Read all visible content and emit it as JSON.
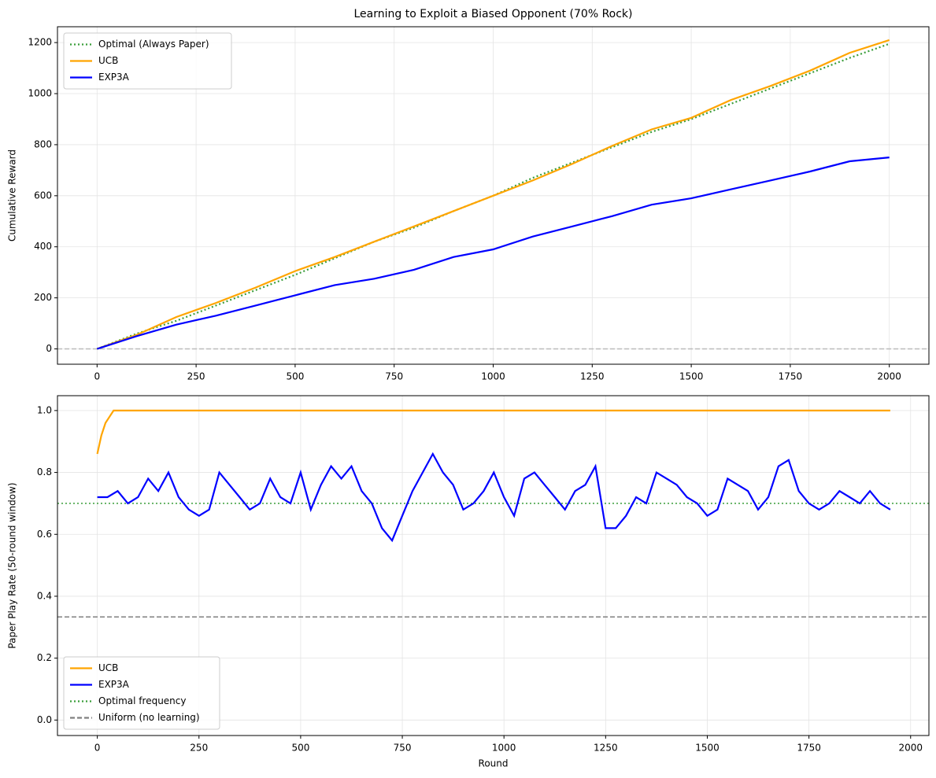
{
  "chart_data": [
    {
      "type": "line",
      "title": "Learning to Exploit a Biased Opponent (70% Rock)",
      "ylabel": "Cumulative Reward",
      "x": [
        0,
        100,
        200,
        300,
        400,
        500,
        600,
        700,
        800,
        900,
        1000,
        1100,
        1200,
        1300,
        1400,
        1500,
        1600,
        1700,
        1800,
        1900,
        2000
      ],
      "series": [
        {
          "name": "Optimal (Always Paper)",
          "color": "#3a9e3a",
          "style": "dotted",
          "values": [
            0,
            60,
            110,
            170,
            230,
            290,
            355,
            420,
            475,
            540,
            600,
            670,
            730,
            790,
            850,
            900,
            960,
            1020,
            1080,
            1140,
            1195
          ]
        },
        {
          "name": "UCB",
          "color": "orange",
          "style": "solid",
          "values": [
            0,
            55,
            125,
            180,
            240,
            305,
            360,
            420,
            480,
            540,
            600,
            660,
            725,
            795,
            860,
            905,
            975,
            1030,
            1090,
            1160,
            1210
          ]
        },
        {
          "name": "EXP3A",
          "color": "blue",
          "style": "solid",
          "values": [
            0,
            50,
            95,
            130,
            170,
            210,
            250,
            275,
            310,
            360,
            390,
            440,
            480,
            520,
            565,
            590,
            625,
            660,
            695,
            735,
            750
          ]
        }
      ],
      "hlines": [
        {
          "value": 0,
          "color": "#bbbbbb",
          "style": "dashed"
        }
      ],
      "xlim": [
        -100,
        2100
      ],
      "ylim": [
        -60,
        1262
      ],
      "xticks": [
        0,
        250,
        500,
        750,
        1000,
        1250,
        1500,
        1750,
        2000
      ],
      "yticks": [
        0,
        200,
        400,
        600,
        800,
        1000,
        1200
      ],
      "grid": true,
      "legend": "upper-left"
    },
    {
      "type": "line",
      "xlabel": "Round",
      "ylabel": "Paper Play Rate (50-round window)",
      "series": [
        {
          "name": "UCB",
          "color": "orange",
          "style": "solid",
          "x": [
            0,
            10,
            20,
            30,
            40,
            1950
          ],
          "values": [
            0.86,
            0.92,
            0.96,
            0.98,
            1.0,
            1.0
          ]
        },
        {
          "name": "EXP3A",
          "color": "blue",
          "style": "solid",
          "x": [
            0,
            25,
            50,
            75,
            100,
            125,
            150,
            175,
            200,
            225,
            250,
            275,
            300,
            325,
            350,
            375,
            400,
            425,
            450,
            475,
            500,
            525,
            550,
            575,
            600,
            625,
            650,
            675,
            700,
            725,
            750,
            775,
            800,
            825,
            850,
            875,
            900,
            925,
            950,
            975,
            1000,
            1025,
            1050,
            1075,
            1100,
            1125,
            1150,
            1175,
            1200,
            1225,
            1250,
            1275,
            1300,
            1325,
            1350,
            1375,
            1400,
            1425,
            1450,
            1475,
            1500,
            1525,
            1550,
            1575,
            1600,
            1625,
            1650,
            1675,
            1700,
            1725,
            1750,
            1775,
            1800,
            1825,
            1850,
            1875,
            1900,
            1925,
            1950
          ],
          "values": [
            0.72,
            0.72,
            0.74,
            0.7,
            0.72,
            0.78,
            0.74,
            0.8,
            0.72,
            0.68,
            0.66,
            0.68,
            0.8,
            0.76,
            0.72,
            0.68,
            0.7,
            0.78,
            0.72,
            0.7,
            0.8,
            0.68,
            0.76,
            0.82,
            0.78,
            0.82,
            0.74,
            0.7,
            0.62,
            0.58,
            0.66,
            0.74,
            0.8,
            0.86,
            0.8,
            0.76,
            0.68,
            0.7,
            0.74,
            0.8,
            0.72,
            0.66,
            0.78,
            0.8,
            0.76,
            0.72,
            0.68,
            0.74,
            0.76,
            0.82,
            0.62,
            0.62,
            0.66,
            0.72,
            0.7,
            0.8,
            0.78,
            0.76,
            0.72,
            0.7,
            0.66,
            0.68,
            0.78,
            0.76,
            0.74,
            0.68,
            0.72,
            0.82,
            0.84,
            0.74,
            0.7,
            0.68,
            0.7,
            0.74,
            0.72,
            0.7,
            0.74,
            0.7,
            0.68
          ]
        }
      ],
      "hlines": [
        {
          "name": "Optimal frequency",
          "value": 0.7,
          "color": "#3a9e3a",
          "style": "dotted"
        },
        {
          "name": "Uniform (no learning)",
          "value": 0.333,
          "color": "gray",
          "style": "dashed"
        }
      ],
      "xlim": [
        -98,
        2045
      ],
      "ylim": [
        -0.05,
        1.048
      ],
      "xticks": [
        0,
        250,
        500,
        750,
        1000,
        1250,
        1500,
        1750,
        2000
      ],
      "yticks": [
        {
          "value": 0,
          "label": "0.0"
        },
        0.2,
        0.4,
        0.6,
        0.8,
        {
          "value": 1,
          "label": "1.0"
        }
      ],
      "grid": true,
      "legend": "lower-left"
    }
  ]
}
